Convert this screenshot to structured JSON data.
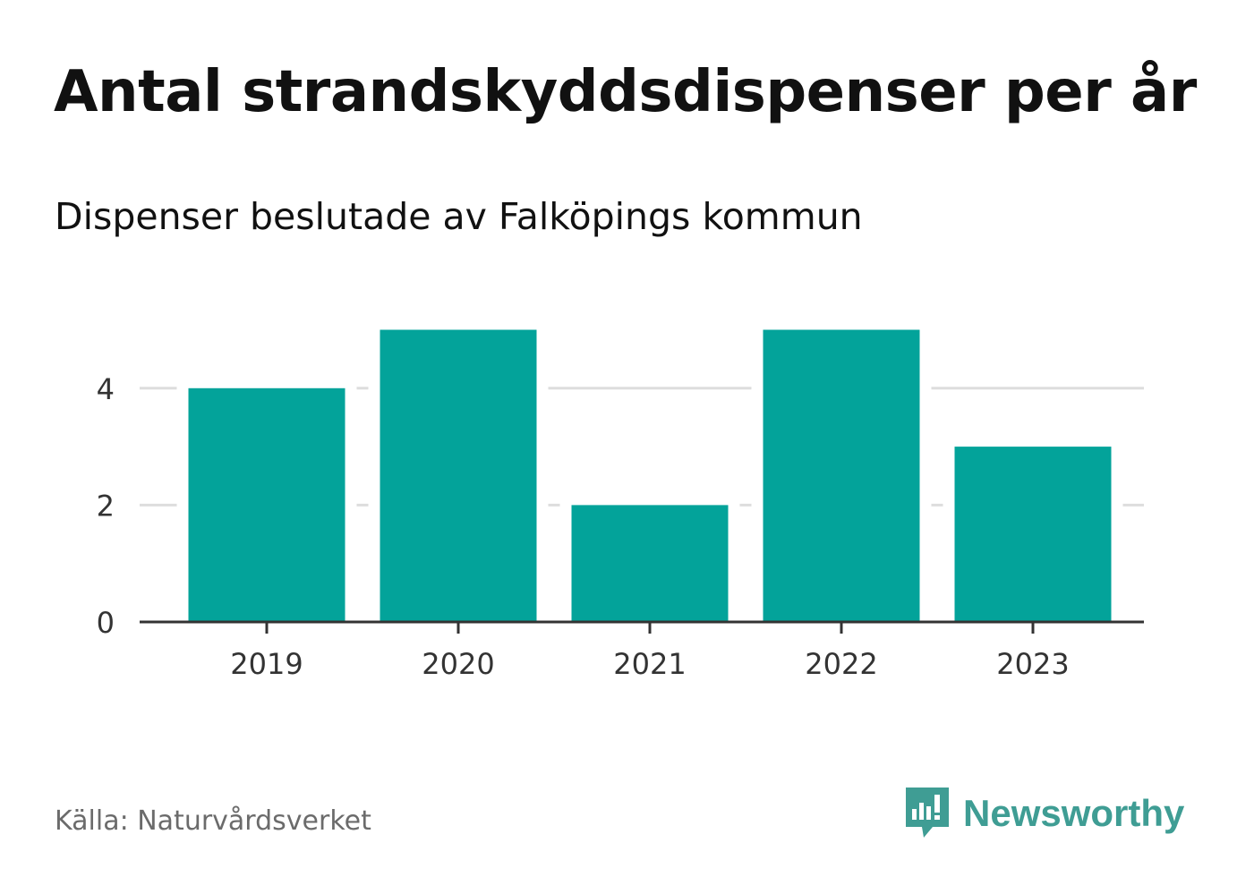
{
  "title": "Antal strandskyddsdispenser per år",
  "subtitle": "Dispenser beslutade av Falköpings kommun",
  "source": "Källa: Naturvårdsverket",
  "brand": "Newsworthy",
  "colors": {
    "bar": "#03a39a",
    "grid": "#dddddd",
    "axis": "#333333",
    "brand": "#3f9d94"
  },
  "chart_data": {
    "type": "bar",
    "categories": [
      "2019",
      "2020",
      "2021",
      "2022",
      "2023"
    ],
    "values": [
      4,
      5,
      2,
      5,
      3
    ],
    "title": "Antal strandskyddsdispenser per år",
    "subtitle": "Dispenser beslutade av Falköpings kommun",
    "xlabel": "",
    "ylabel": "",
    "ylim": [
      0,
      5
    ],
    "yticks": [
      "0",
      "2",
      "4"
    ],
    "grid": true,
    "legend": "none"
  }
}
